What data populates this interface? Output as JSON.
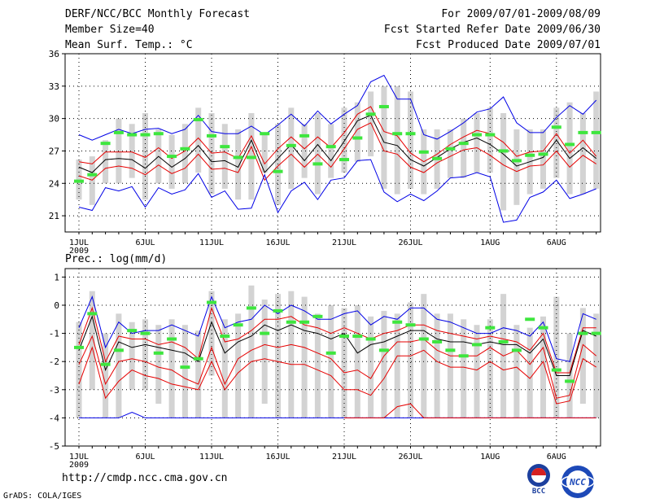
{
  "header": {
    "title": "DERF/NCC/BCC Monthly Forecast",
    "member_size": "Member Size=40",
    "variable1": "Mean Surf. Temp.: °C",
    "period": "For 2009/07/01-2009/08/09",
    "started": "Fcst Started Refer Date 2009/06/30",
    "produced": "Fcst Produced Date 2009/07/01"
  },
  "footer": {
    "url": "http://cmdp.ncc.cma.gov.cn",
    "credit": "GrADS: COLA/IGES",
    "logo_bcc": "BCC",
    "logo_ncc": "NCC"
  },
  "colors": {
    "box": "#d3d3d3",
    "green": "#3ee63e",
    "red": "#e60000",
    "blue": "#0000e6",
    "median": "#000000",
    "grid": "#000000"
  },
  "chart_data": [
    {
      "type": "line",
      "title": "Mean Surf. Temp.: °C",
      "ylim": [
        19.5,
        36
      ],
      "yticks": [
        21,
        24,
        27,
        30,
        33,
        36
      ],
      "x": [
        1,
        2,
        3,
        4,
        5,
        6,
        7,
        8,
        9,
        10,
        11,
        12,
        13,
        14,
        15,
        16,
        17,
        18,
        19,
        20,
        21,
        22,
        23,
        24,
        25,
        26,
        27,
        28,
        29,
        30,
        31,
        32,
        33,
        34,
        35,
        36,
        37,
        38,
        39,
        40
      ],
      "xticks": [
        1,
        6,
        11,
        16,
        21,
        26,
        32,
        37
      ],
      "xtick_labels": [
        "1JUL",
        "6JUL",
        "11JUL",
        "16JUL",
        "21JUL",
        "26JUL",
        "1AUG",
        "6AUG"
      ],
      "year_label": "2009",
      "series": [
        {
          "name": "upper (blue)",
          "values": [
            28.5,
            28.0,
            28.5,
            29.0,
            28.6,
            29.0,
            29.1,
            28.6,
            29.0,
            30.3,
            28.8,
            28.6,
            28.6,
            29.3,
            28.5,
            29.4,
            30.4,
            29.3,
            30.7,
            29.5,
            30.4,
            31.2,
            33.4,
            34.0,
            31.8,
            31.8,
            28.5,
            28.1,
            28.8,
            29.6,
            30.6,
            30.9,
            32.0,
            29.6,
            28.7,
            28.7,
            30.1,
            31.2,
            30.4,
            31.7
          ]
        },
        {
          "name": "upper (red)",
          "values": [
            26.0,
            25.8,
            26.9,
            26.9,
            26.9,
            26.4,
            27.3,
            26.3,
            27.0,
            28.2,
            26.8,
            26.9,
            26.3,
            28.4,
            25.8,
            27.2,
            28.3,
            27.2,
            28.3,
            27.3,
            28.7,
            30.4,
            31.1,
            28.8,
            28.4,
            26.8,
            26.0,
            26.7,
            27.6,
            28.3,
            28.9,
            28.6,
            27.8,
            26.5,
            26.9,
            27.0,
            28.6,
            26.8,
            28.0,
            26.5
          ]
        },
        {
          "name": "median (black)",
          "values": [
            25.5,
            25.0,
            26.2,
            26.3,
            26.2,
            25.4,
            26.5,
            25.5,
            26.3,
            27.5,
            26.0,
            26.1,
            25.5,
            28.0,
            25.0,
            26.3,
            27.6,
            26.1,
            27.6,
            26.1,
            27.9,
            29.8,
            30.3,
            27.8,
            27.5,
            26.2,
            25.6,
            26.4,
            27.2,
            27.8,
            28.2,
            27.6,
            26.7,
            25.6,
            26.0,
            26.4,
            28.0,
            26.3,
            27.3,
            26.3
          ]
        },
        {
          "name": "lower (red)",
          "values": [
            24.7,
            24.3,
            25.4,
            25.6,
            25.4,
            24.8,
            25.7,
            24.9,
            25.4,
            26.7,
            25.3,
            25.4,
            25.0,
            27.4,
            24.3,
            25.6,
            26.7,
            25.5,
            26.7,
            25.5,
            27.2,
            29.0,
            29.6,
            27.0,
            26.7,
            25.5,
            25.0,
            25.9,
            26.5,
            27.1,
            27.3,
            26.6,
            25.7,
            25.1,
            25.6,
            25.7,
            27.0,
            25.5,
            26.6,
            25.8
          ]
        },
        {
          "name": "lower (blue)",
          "values": [
            21.8,
            21.5,
            23.6,
            23.3,
            23.7,
            21.8,
            23.6,
            23.0,
            23.4,
            24.9,
            22.7,
            23.3,
            21.6,
            21.7,
            24.8,
            21.3,
            23.3,
            24.1,
            22.5,
            24.3,
            24.5,
            26.1,
            26.2,
            23.2,
            22.3,
            23.0,
            22.4,
            23.3,
            24.5,
            24.6,
            25.0,
            24.6,
            20.4,
            20.6,
            22.7,
            23.2,
            24.3,
            22.6,
            23.0,
            23.5
          ]
        },
        {
          "name": "box top (grey)",
          "values": [
            26.2,
            26.5,
            28.0,
            30.0,
            29.5,
            30.5,
            29.0,
            28.5,
            29.5,
            31.0,
            30.5,
            29.5,
            29.0,
            30.5,
            28.5,
            29.5,
            31.0,
            29.5,
            30.5,
            29.5,
            31.0,
            31.5,
            32.5,
            33.0,
            33.0,
            32.5,
            29.0,
            29.0,
            29.0,
            30.0,
            30.5,
            31.0,
            30.5,
            29.0,
            29.0,
            29.0,
            31.0,
            31.5,
            30.5,
            32.5
          ]
        },
        {
          "name": "box bottom (grey)",
          "values": [
            22.5,
            22.0,
            24.0,
            24.0,
            24.5,
            22.5,
            24.0,
            23.5,
            24.0,
            25.0,
            23.0,
            23.5,
            22.5,
            22.5,
            25.0,
            22.0,
            23.5,
            24.5,
            23.0,
            24.5,
            25.0,
            26.0,
            26.5,
            23.5,
            23.0,
            23.5,
            23.0,
            23.5,
            24.5,
            24.5,
            25.0,
            25.0,
            21.5,
            22.0,
            23.0,
            23.5,
            24.5,
            23.0,
            23.0,
            23.5
          ]
        },
        {
          "name": "observed (green)",
          "values": [
            24.2,
            24.8,
            27.7,
            28.7,
            28.5,
            28.5,
            28.6,
            26.5,
            27.2,
            29.9,
            28.4,
            27.4,
            26.4,
            26.4,
            28.6,
            25.1,
            27.5,
            28.4,
            25.8,
            27.4,
            26.2,
            28.2,
            30.4,
            31.1,
            28.6,
            28.6,
            26.9,
            26.3,
            27.2,
            27.7,
            28.5,
            28.5,
            27.0,
            26.1,
            26.6,
            26.7,
            29.2,
            27.6,
            28.7,
            28.7
          ]
        }
      ]
    },
    {
      "type": "line",
      "title": "Prec.: log(mm/d)",
      "ylim": [
        -5,
        1.3
      ],
      "yticks": [
        -5,
        -4,
        -3,
        -2,
        -1,
        0,
        1
      ],
      "x": [
        1,
        2,
        3,
        4,
        5,
        6,
        7,
        8,
        9,
        10,
        11,
        12,
        13,
        14,
        15,
        16,
        17,
        18,
        19,
        20,
        21,
        22,
        23,
        24,
        25,
        26,
        27,
        28,
        29,
        30,
        31,
        32,
        33,
        34,
        35,
        36,
        37,
        38,
        39,
        40
      ],
      "xticks": [
        1,
        6,
        11,
        16,
        21,
        26,
        32,
        37
      ],
      "xtick_labels": [
        "1JUL",
        "6JUL",
        "11JUL",
        "16JUL",
        "21JUL",
        "26JUL",
        "1AUG",
        "6AUG"
      ],
      "year_label": "2009",
      "series": [
        {
          "name": "upper (blue)",
          "values": [
            -0.8,
            0.3,
            -1.5,
            -0.6,
            -1.0,
            -0.9,
            -0.9,
            -0.7,
            -0.9,
            -1.1,
            0.3,
            -0.8,
            -0.6,
            -0.5,
            0.0,
            -0.3,
            0.0,
            -0.2,
            -0.5,
            -0.5,
            -0.3,
            -0.2,
            -0.7,
            -0.4,
            -0.5,
            -0.1,
            -0.1,
            -0.5,
            -0.6,
            -0.8,
            -1.0,
            -1.0,
            -0.8,
            -0.9,
            -1.1,
            -0.6,
            -1.9,
            -2.0,
            -0.3,
            -0.5
          ]
        },
        {
          "name": "upper (red)",
          "values": [
            -1.4,
            -0.1,
            -2.0,
            -1.1,
            -1.2,
            -1.2,
            -1.4,
            -1.3,
            -1.5,
            -1.9,
            -0.1,
            -1.3,
            -1.2,
            -0.9,
            -0.5,
            -0.5,
            -0.4,
            -0.7,
            -0.8,
            -1.0,
            -0.8,
            -1.0,
            -1.2,
            -1.0,
            -0.9,
            -0.7,
            -0.7,
            -0.9,
            -1.0,
            -1.1,
            -1.2,
            -1.1,
            -1.2,
            -1.3,
            -1.6,
            -1.0,
            -2.4,
            -2.4,
            -0.8,
            -0.8
          ]
        },
        {
          "name": "median (black)",
          "values": [
            -1.6,
            -0.4,
            -2.3,
            -1.3,
            -1.5,
            -1.4,
            -1.5,
            -1.6,
            -1.7,
            -2.0,
            -0.6,
            -1.7,
            -1.3,
            -1.1,
            -0.7,
            -0.9,
            -0.7,
            -0.9,
            -1.0,
            -1.2,
            -1.0,
            -1.7,
            -1.4,
            -1.3,
            -1.1,
            -0.9,
            -0.9,
            -1.2,
            -1.3,
            -1.3,
            -1.4,
            -1.3,
            -1.4,
            -1.4,
            -1.7,
            -1.2,
            -2.5,
            -2.5,
            -0.9,
            -1.1
          ]
        },
        {
          "name": "lower (red)",
          "values": [
            -2.1,
            -1.1,
            -2.8,
            -2.0,
            -1.9,
            -2.0,
            -2.2,
            -2.3,
            -2.6,
            -2.8,
            -1.5,
            -2.8,
            -1.9,
            -1.6,
            -1.4,
            -1.5,
            -1.4,
            -1.5,
            -1.7,
            -1.9,
            -2.4,
            -2.3,
            -2.6,
            -1.8,
            -1.3,
            -1.3,
            -1.2,
            -1.6,
            -1.8,
            -1.8,
            -1.8,
            -1.5,
            -1.8,
            -1.6,
            -2.1,
            -1.5,
            -3.3,
            -3.2,
            -1.4,
            -1.8
          ]
        },
        {
          "name": "lower (red, deep)",
          "values": [
            -2.8,
            -1.5,
            -3.3,
            -2.7,
            -2.3,
            -2.5,
            -2.6,
            -2.8,
            -2.9,
            -3.0,
            -2.0,
            -3.0,
            -2.4,
            -2.0,
            -1.9,
            -2.0,
            -2.1,
            -2.1,
            -2.3,
            -2.5,
            -3.0,
            -3.0,
            -3.2,
            -2.6,
            -1.8,
            -1.8,
            -1.6,
            -2.0,
            -2.2,
            -2.2,
            -2.3,
            -2.0,
            -2.3,
            -2.2,
            -2.6,
            -2.0,
            -3.5,
            -3.4,
            -1.9,
            -2.2
          ]
        },
        {
          "name": "floor (blue)",
          "values": [
            -4.0,
            -4.0,
            -4.0,
            -4.0,
            -3.8,
            -4.0,
            -4.0,
            -4.0,
            -4.0,
            -4.0,
            -4.0,
            -4.0,
            -4.0,
            -4.0,
            -4.0,
            -4.0,
            -4.0,
            -4.0,
            -4.0,
            -4.0,
            -4.0,
            -4.0,
            -4.0,
            -4.0,
            -4.0,
            -4.0,
            -4.0,
            -4.0,
            -4.0,
            -4.0,
            -4.0,
            -4.0,
            -4.0,
            -4.0,
            -4.0,
            -4.0,
            -4.0,
            -4.0,
            -4.0,
            -4.0
          ]
        },
        {
          "name": "box top (grey)",
          "values": [
            -0.6,
            0.5,
            -1.0,
            -0.3,
            -0.6,
            -0.5,
            -0.7,
            -0.5,
            -0.7,
            -0.9,
            0.5,
            -0.5,
            -0.3,
            0.7,
            0.2,
            0.4,
            0.5,
            0.3,
            -0.3,
            0.0,
            -0.1,
            0.0,
            -0.4,
            -0.2,
            -0.3,
            0.1,
            0.4,
            -0.3,
            -0.3,
            -0.5,
            -0.7,
            -0.5,
            0.4,
            -0.7,
            -0.8,
            -0.4,
            0.3,
            -1.0,
            -0.1,
            -0.3
          ]
        },
        {
          "name": "box bottom (grey)",
          "values": [
            -4.0,
            -3.0,
            -4.0,
            -4.0,
            -3.0,
            -3.0,
            -3.5,
            -4.0,
            -4.0,
            -4.0,
            -2.5,
            -4.0,
            -4.0,
            -4.0,
            -3.5,
            -4.0,
            -4.0,
            -4.0,
            -4.0,
            -4.0,
            -4.0,
            -4.0,
            -4.0,
            -4.0,
            -4.0,
            -4.0,
            -4.0,
            -4.0,
            -4.0,
            -4.0,
            -4.0,
            -4.0,
            -4.0,
            -4.0,
            -4.0,
            -4.0,
            -4.0,
            -4.0,
            -3.5,
            -4.0
          ]
        },
        {
          "name": "observed (green)",
          "values": [
            -1.5,
            -0.3,
            -2.1,
            -1.6,
            -0.9,
            -1.0,
            -1.7,
            -1.2,
            -2.2,
            -1.9,
            0.1,
            -1.1,
            -0.7,
            -0.1,
            -1.0,
            -0.2,
            -0.6,
            -0.6,
            -0.4,
            -1.7,
            -1.1,
            -1.1,
            -1.2,
            -1.6,
            -0.6,
            -0.7,
            -1.2,
            -1.3,
            -1.6,
            -1.8,
            -1.4,
            -0.8,
            -1.3,
            -1.6,
            -0.5,
            -0.8,
            -2.3,
            -2.7,
            -1.0,
            -1.0
          ]
        },
        {
          "name": "lower (red, floor)",
          "values": [
            null,
            null,
            null,
            null,
            null,
            null,
            null,
            null,
            null,
            null,
            null,
            null,
            null,
            null,
            null,
            null,
            null,
            null,
            null,
            null,
            -4.0,
            -4.0,
            -4.0,
            -4.0,
            -3.6,
            -3.5,
            -4.0,
            -4.0,
            -4.0,
            -4.0,
            -4.0,
            -4.0,
            -4.0,
            -4.0,
            -4.0,
            -4.0,
            -4.0,
            -4.0,
            -4.0,
            -4.0
          ]
        }
      ]
    }
  ]
}
